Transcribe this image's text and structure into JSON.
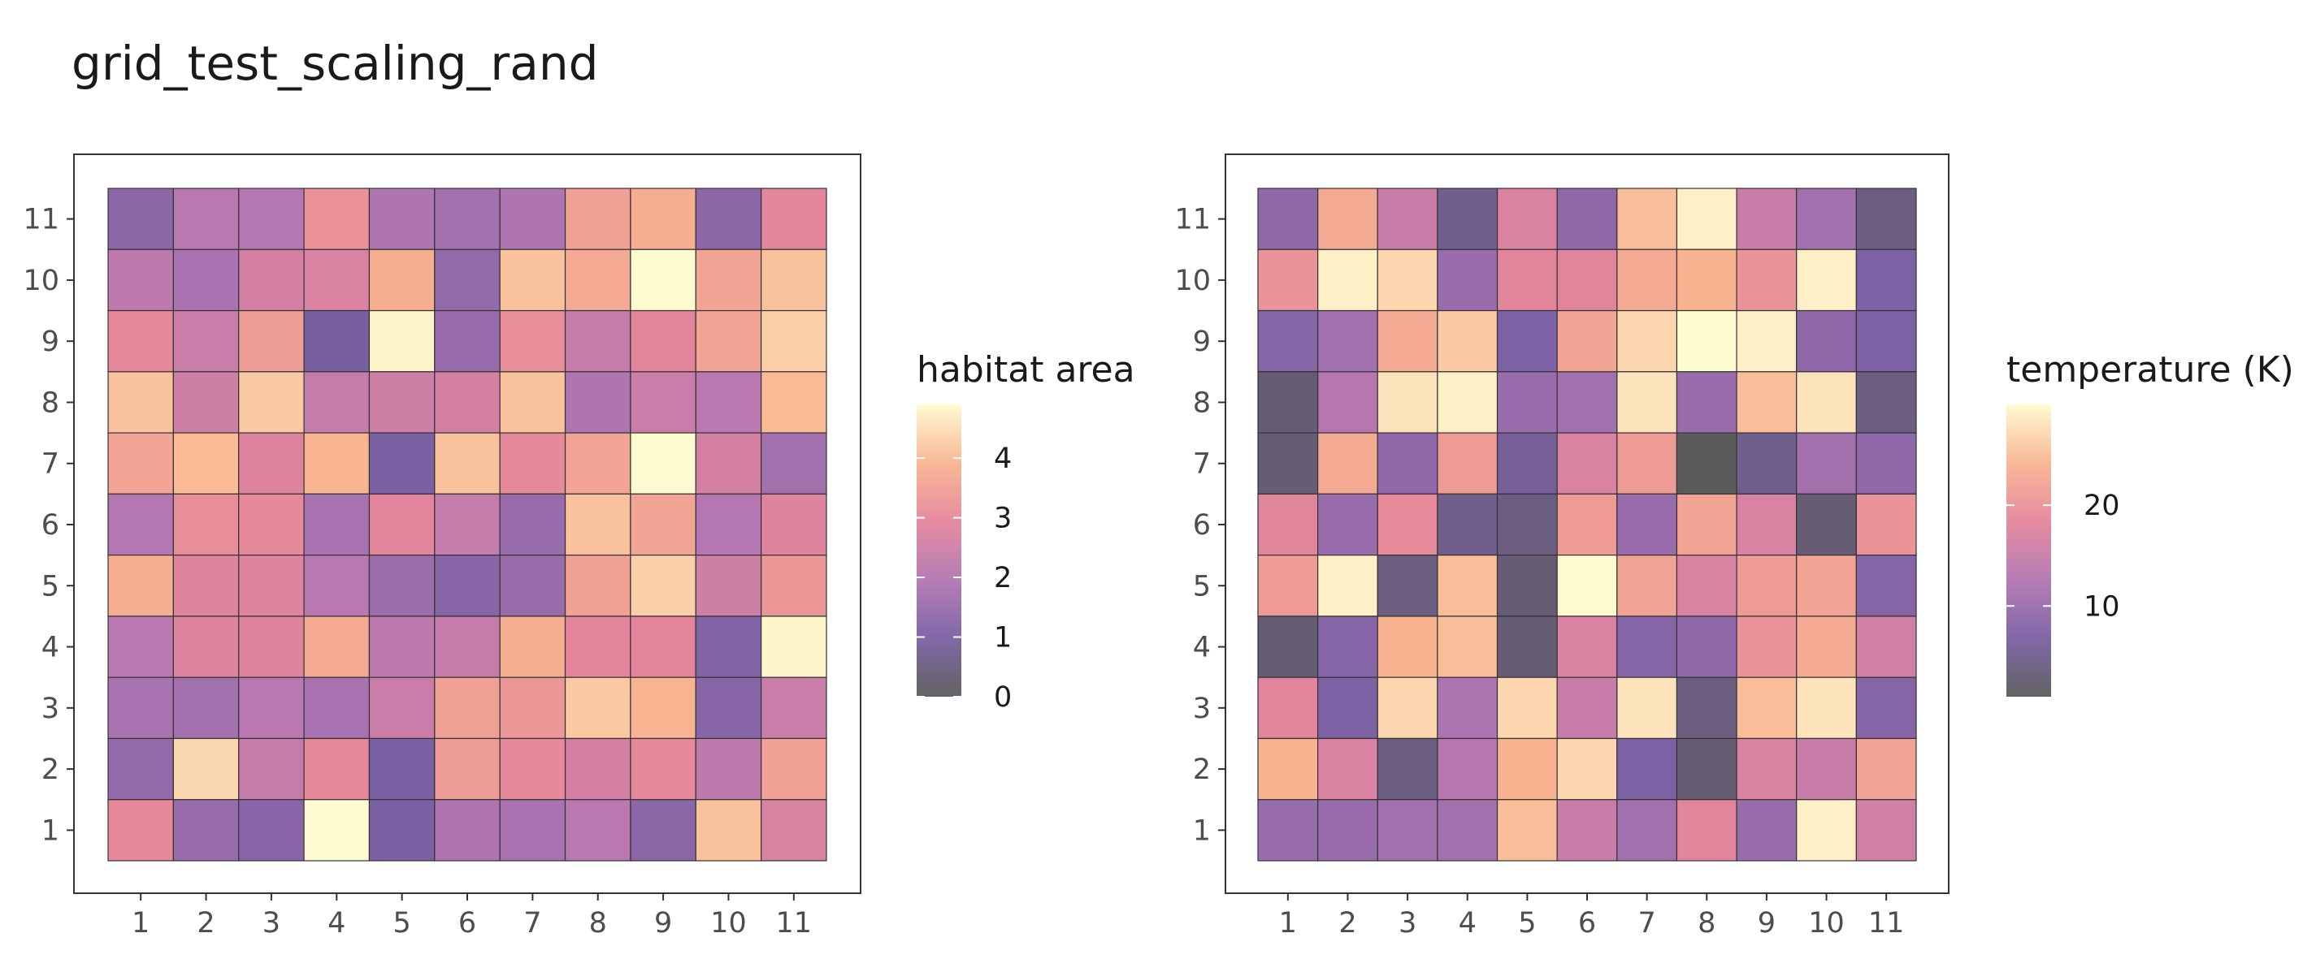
{
  "title": "grid_test_scaling_rand",
  "colors": {
    "scale": [
      "#5b5b5b",
      "#7a60a3",
      "#b276b2",
      "#e5869b",
      "#f8b490",
      "#fffbd1"
    ],
    "panel_border": "#333333",
    "tile_border": "#333333"
  },
  "chart_data": [
    {
      "type": "heatmap",
      "title": "",
      "xlabel": "",
      "ylabel": "",
      "x": [
        1,
        2,
        3,
        4,
        5,
        6,
        7,
        8,
        9,
        10,
        11
      ],
      "y": [
        1,
        2,
        3,
        4,
        5,
        6,
        7,
        8,
        9,
        10,
        11
      ],
      "legend_title": "habitat area",
      "legend_ticks": [
        4,
        3,
        2,
        1,
        0
      ],
      "value_range": [
        0,
        4.9
      ],
      "grid": false,
      "legend_placement": "right",
      "values_by_row_top_to_bottom": [
        [
          1.3,
          2.1,
          2.0,
          3.2,
          1.9,
          1.7,
          1.9,
          3.5,
          3.8,
          1.3,
          2.9
        ],
        [
          2.2,
          1.8,
          2.6,
          2.7,
          3.8,
          1.4,
          4.1,
          3.7,
          4.9,
          3.6,
          4.1
        ],
        [
          3.0,
          2.4,
          3.4,
          0.9,
          4.8,
          1.5,
          3.1,
          2.3,
          2.9,
          3.6,
          4.3
        ],
        [
          4.1,
          2.5,
          4.2,
          2.3,
          2.5,
          2.6,
          4.1,
          1.9,
          2.4,
          2.1,
          4.0
        ],
        [
          3.6,
          4.0,
          2.8,
          3.9,
          1.0,
          4.1,
          3.0,
          3.6,
          4.9,
          2.6,
          1.7
        ],
        [
          2.0,
          3.1,
          3.0,
          1.8,
          2.9,
          2.3,
          1.5,
          4.1,
          3.6,
          2.0,
          2.8
        ],
        [
          3.8,
          2.8,
          2.8,
          2.1,
          1.6,
          1.2,
          1.5,
          3.5,
          4.3,
          2.5,
          3.3
        ],
        [
          2.1,
          2.8,
          2.8,
          3.7,
          2.2,
          2.3,
          3.8,
          2.9,
          2.9,
          1.1,
          4.8
        ],
        [
          1.8,
          1.7,
          2.1,
          1.8,
          2.4,
          3.5,
          3.3,
          4.2,
          3.9,
          1.2,
          2.4
        ],
        [
          1.4,
          4.4,
          2.3,
          3.0,
          1.0,
          3.4,
          3.0,
          2.6,
          3.0,
          2.2,
          3.5
        ],
        [
          3.0,
          1.5,
          1.2,
          4.9,
          1.0,
          1.9,
          1.8,
          2.1,
          1.3,
          4.1,
          2.7
        ]
      ]
    },
    {
      "type": "heatmap",
      "title": "",
      "xlabel": "",
      "ylabel": "",
      "x": [
        1,
        2,
        3,
        4,
        5,
        6,
        7,
        8,
        9,
        10,
        11
      ],
      "y": [
        1,
        2,
        3,
        4,
        5,
        6,
        7,
        8,
        9,
        10,
        11
      ],
      "legend_title": "temperature (K)",
      "legend_ticks": [
        20,
        10
      ],
      "value_range": [
        1,
        30
      ],
      "grid": false,
      "legend_placement": "right",
      "values_by_row_top_to_bottom": [
        [
          9,
          23,
          15,
          5,
          17,
          9,
          25,
          29,
          15,
          11,
          4
        ],
        [
          20,
          29,
          27,
          10,
          18,
          18,
          23,
          24,
          20,
          29,
          7
        ],
        [
          8,
          11,
          23,
          26,
          7,
          22,
          27,
          30,
          29,
          9,
          7
        ],
        [
          3,
          13,
          28,
          29,
          10,
          11,
          28,
          10,
          25,
          28,
          4
        ],
        [
          3,
          23,
          9,
          21,
          6,
          17,
          21,
          1,
          5,
          11,
          9
        ],
        [
          18,
          10,
          19,
          5,
          4,
          21,
          10,
          22,
          17,
          3,
          20
        ],
        [
          21,
          29,
          4,
          25,
          3,
          30,
          22,
          17,
          21,
          22,
          8
        ],
        [
          3,
          8,
          24,
          25,
          3,
          17,
          8,
          9,
          20,
          23,
          16
        ],
        [
          18,
          7,
          27,
          12,
          27,
          15,
          28,
          4,
          25,
          28,
          8
        ],
        [
          24,
          17,
          4,
          13,
          24,
          27,
          7,
          3,
          17,
          15,
          22
        ],
        [
          10,
          10,
          11,
          11,
          25,
          15,
          11,
          18,
          10,
          29,
          16
        ]
      ]
    }
  ]
}
